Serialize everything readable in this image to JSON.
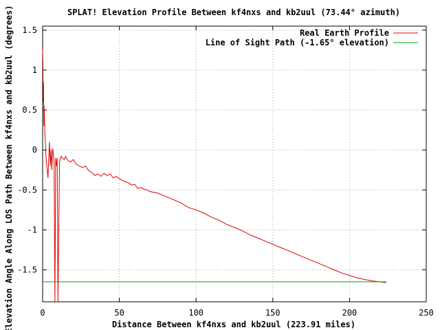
{
  "chart_data": {
    "type": "line",
    "title": "SPLAT! Elevation Profile Between kf4nxs and kb2uul (73.44° azimuth)",
    "xlabel": "Distance Between kf4nxs and kb2uul (223.91 miles)",
    "ylabel": "Elevation Angle Along LOS Path Between kf4nxs and kb2uul (degrees)",
    "xlim": [
      0,
      250
    ],
    "ylim": [
      -1.9,
      1.55
    ],
    "x_ticks": [
      0,
      50,
      100,
      150,
      200,
      250
    ],
    "x_tick_labels": [
      "0",
      "50",
      "100",
      "150",
      "200",
      "250"
    ],
    "y_ticks": [
      1.5,
      1,
      0.5,
      0,
      -0.5,
      -1,
      -1.5
    ],
    "y_tick_labels": [
      "1.5",
      "1",
      "0.5",
      "0",
      "-0.5",
      "-1",
      "-1.5"
    ],
    "grid": true,
    "legend_position": "top-right",
    "series": [
      {
        "name": "Real Earth Profile",
        "color": "#e00000",
        "x": [
          0,
          0.2,
          0.4,
          0.6,
          0.8,
          1.0,
          1.2,
          1.5,
          1.8,
          2.1,
          2.5,
          3,
          3.5,
          4,
          4.5,
          5,
          5.5,
          6,
          6.5,
          7,
          7.5,
          8,
          8.5,
          9,
          9.5,
          10,
          11,
          12,
          13,
          14,
          15,
          16,
          18,
          20,
          22,
          24,
          26,
          28,
          30,
          32,
          34,
          36,
          38,
          40,
          42,
          44,
          46,
          48,
          50,
          52,
          54,
          56,
          58,
          60,
          62,
          64,
          66,
          68,
          70,
          75,
          80,
          85,
          90,
          95,
          100,
          105,
          110,
          115,
          120,
          125,
          130,
          135,
          140,
          145,
          150,
          155,
          160,
          165,
          170,
          175,
          180,
          185,
          190,
          195,
          200,
          205,
          210,
          215,
          220,
          223.91
        ],
        "y": [
          1.25,
          1.1,
          0.6,
          0.85,
          0.3,
          0.55,
          0.4,
          0.2,
          0.1,
          -0.05,
          -0.15,
          -0.25,
          -0.35,
          -0.1,
          0.1,
          -0.2,
          0.0,
          -0.25,
          0.02,
          -0.05,
          -0.15,
          -1.9,
          -0.1,
          -0.2,
          -0.1,
          -1.9,
          -0.15,
          -0.08,
          -0.1,
          -0.12,
          -0.08,
          -0.12,
          -0.15,
          -0.12,
          -0.18,
          -0.2,
          -0.22,
          -0.2,
          -0.26,
          -0.28,
          -0.32,
          -0.3,
          -0.33,
          -0.29,
          -0.32,
          -0.3,
          -0.35,
          -0.33,
          -0.36,
          -0.38,
          -0.4,
          -0.41,
          -0.44,
          -0.43,
          -0.48,
          -0.47,
          -0.49,
          -0.5,
          -0.52,
          -0.54,
          -0.58,
          -0.62,
          -0.66,
          -0.72,
          -0.75,
          -0.79,
          -0.84,
          -0.88,
          -0.93,
          -0.97,
          -1.01,
          -1.06,
          -1.1,
          -1.14,
          -1.18,
          -1.22,
          -1.26,
          -1.3,
          -1.34,
          -1.38,
          -1.42,
          -1.46,
          -1.5,
          -1.54,
          -1.57,
          -1.6,
          -1.62,
          -1.64,
          -1.65,
          -1.66
        ]
      },
      {
        "name": "Line of Sight Path (-1.65° elevation)",
        "color": "#00a000",
        "x": [
          0,
          223.91
        ],
        "y": [
          -1.65,
          -1.65
        ]
      }
    ]
  }
}
